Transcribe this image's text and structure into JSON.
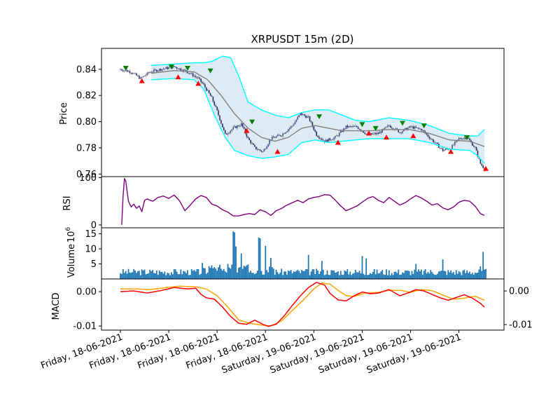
{
  "chart_data": {
    "type": "line",
    "title": "XRPUSDT 15m (2D)",
    "x_tick_labels": [
      "Friday, 18-06-2021",
      "Friday, 18-06-2021",
      "Friday, 18-06-2021",
      "Friday, 18-06-2021",
      "Saturday, 19-06-2021",
      "Saturday, 19-06-2021",
      "Saturday, 19-06-2021",
      "Saturday, 19-06-2021"
    ],
    "panels": {
      "price": {
        "ylabel": "Price",
        "ylim": [
          0.758,
          0.856
        ],
        "yticks": [
          "0.84",
          "0.82",
          "0.80",
          "0.78",
          "0.76"
        ],
        "close_anchors": [
          [
            0,
            0.84
          ],
          [
            8,
            0.838
          ],
          [
            15,
            0.833
          ],
          [
            22,
            0.838
          ],
          [
            30,
            0.84
          ],
          [
            40,
            0.842
          ],
          [
            50,
            0.838
          ],
          [
            58,
            0.833
          ],
          [
            62,
            0.828
          ],
          [
            68,
            0.818
          ],
          [
            72,
            0.808
          ],
          [
            78,
            0.79
          ],
          [
            84,
            0.795
          ],
          [
            90,
            0.798
          ],
          [
            95,
            0.787
          ],
          [
            100,
            0.78
          ],
          [
            106,
            0.777
          ],
          [
            112,
            0.787
          ],
          [
            120,
            0.79
          ],
          [
            128,
            0.797
          ],
          [
            134,
            0.806
          ],
          [
            140,
            0.803
          ],
          [
            146,
            0.79
          ],
          [
            152,
            0.785
          ],
          [
            160,
            0.788
          ],
          [
            168,
            0.796
          ],
          [
            176,
            0.796
          ],
          [
            184,
            0.79
          ],
          [
            192,
            0.791
          ],
          [
            200,
            0.797
          ],
          [
            208,
            0.792
          ],
          [
            216,
            0.796
          ],
          [
            224,
            0.794
          ],
          [
            232,
            0.786
          ],
          [
            240,
            0.778
          ],
          [
            246,
            0.78
          ],
          [
            252,
            0.787
          ],
          [
            258,
            0.788
          ],
          [
            264,
            0.78
          ],
          [
            268,
            0.768
          ],
          [
            271,
            0.764
          ]
        ],
        "ma_anchors": [
          [
            23,
            0.837
          ],
          [
            40,
            0.839
          ],
          [
            55,
            0.838
          ],
          [
            65,
            0.832
          ],
          [
            75,
            0.82
          ],
          [
            85,
            0.806
          ],
          [
            95,
            0.795
          ],
          [
            105,
            0.788
          ],
          [
            115,
            0.785
          ],
          [
            125,
            0.788
          ],
          [
            135,
            0.795
          ],
          [
            145,
            0.797
          ],
          [
            155,
            0.795
          ],
          [
            165,
            0.793
          ],
          [
            175,
            0.793
          ],
          [
            185,
            0.793
          ],
          [
            200,
            0.794
          ],
          [
            215,
            0.794
          ],
          [
            230,
            0.791
          ],
          [
            245,
            0.786
          ],
          [
            260,
            0.785
          ],
          [
            271,
            0.781
          ]
        ],
        "upper_anchors": [
          [
            23,
            0.843
          ],
          [
            40,
            0.844
          ],
          [
            55,
            0.845
          ],
          [
            62,
            0.845
          ],
          [
            68,
            0.846
          ],
          [
            76,
            0.85
          ],
          [
            82,
            0.849
          ],
          [
            88,
            0.835
          ],
          [
            95,
            0.815
          ],
          [
            105,
            0.809
          ],
          [
            115,
            0.805
          ],
          [
            125,
            0.803
          ],
          [
            135,
            0.807
          ],
          [
            145,
            0.809
          ],
          [
            155,
            0.809
          ],
          [
            165,
            0.805
          ],
          [
            175,
            0.801
          ],
          [
            185,
            0.8
          ],
          [
            200,
            0.803
          ],
          [
            215,
            0.801
          ],
          [
            230,
            0.797
          ],
          [
            245,
            0.791
          ],
          [
            260,
            0.789
          ],
          [
            266,
            0.789
          ],
          [
            271,
            0.794
          ]
        ],
        "lower_anchors": [
          [
            23,
            0.832
          ],
          [
            40,
            0.833
          ],
          [
            55,
            0.832
          ],
          [
            62,
            0.825
          ],
          [
            70,
            0.805
          ],
          [
            78,
            0.788
          ],
          [
            85,
            0.778
          ],
          [
            95,
            0.774
          ],
          [
            105,
            0.772
          ],
          [
            115,
            0.773
          ],
          [
            125,
            0.775
          ],
          [
            135,
            0.784
          ],
          [
            145,
            0.786
          ],
          [
            155,
            0.784
          ],
          [
            165,
            0.785
          ],
          [
            175,
            0.786
          ],
          [
            185,
            0.787
          ],
          [
            200,
            0.787
          ],
          [
            215,
            0.787
          ],
          [
            230,
            0.784
          ],
          [
            245,
            0.779
          ],
          [
            260,
            0.778
          ],
          [
            266,
            0.774
          ],
          [
            271,
            0.768
          ]
        ],
        "buy_signals": [
          [
            4,
            0.841
          ],
          [
            38,
            0.842
          ],
          [
            50,
            0.841
          ],
          [
            67,
            0.839
          ],
          [
            98,
            0.8
          ],
          [
            148,
            0.804
          ],
          [
            180,
            0.798
          ],
          [
            190,
            0.795
          ],
          [
            210,
            0.799
          ],
          [
            226,
            0.797
          ],
          [
            258,
            0.788
          ]
        ],
        "sell_signals": [
          [
            16,
            0.831
          ],
          [
            43,
            0.834
          ],
          [
            58,
            0.829
          ],
          [
            94,
            0.793
          ],
          [
            117,
            0.777
          ],
          [
            162,
            0.784
          ],
          [
            185,
            0.791
          ],
          [
            198,
            0.788
          ],
          [
            218,
            0.789
          ],
          [
            246,
            0.777
          ],
          [
            272,
            0.764
          ]
        ]
      },
      "rsi": {
        "ylabel": "RSI",
        "ylim": [
          -6,
          102
        ],
        "yticks": [
          "100",
          "0"
        ],
        "anchors": [
          [
            1,
            0
          ],
          [
            2,
            60
          ],
          [
            3,
            98
          ],
          [
            4,
            92
          ],
          [
            6,
            50
          ],
          [
            8,
            38
          ],
          [
            10,
            44
          ],
          [
            12,
            35
          ],
          [
            14,
            40
          ],
          [
            16,
            28
          ],
          [
            18,
            52
          ],
          [
            20,
            55
          ],
          [
            24,
            50
          ],
          [
            28,
            58
          ],
          [
            32,
            61
          ],
          [
            36,
            56
          ],
          [
            40,
            63
          ],
          [
            44,
            51
          ],
          [
            48,
            30
          ],
          [
            52,
            42
          ],
          [
            56,
            55
          ],
          [
            60,
            62
          ],
          [
            64,
            58
          ],
          [
            68,
            44
          ],
          [
            72,
            40
          ],
          [
            76,
            32
          ],
          [
            80,
            27
          ],
          [
            84,
            19
          ],
          [
            88,
            19
          ],
          [
            92,
            22
          ],
          [
            96,
            24
          ],
          [
            100,
            22
          ],
          [
            104,
            32
          ],
          [
            108,
            28
          ],
          [
            112,
            20
          ],
          [
            116,
            30
          ],
          [
            120,
            35
          ],
          [
            124,
            42
          ],
          [
            128,
            47
          ],
          [
            132,
            52
          ],
          [
            136,
            47
          ],
          [
            140,
            55
          ],
          [
            144,
            58
          ],
          [
            148,
            60
          ],
          [
            152,
            64
          ],
          [
            156,
            63
          ],
          [
            160,
            52
          ],
          [
            164,
            40
          ],
          [
            168,
            30
          ],
          [
            172,
            35
          ],
          [
            176,
            40
          ],
          [
            180,
            48
          ],
          [
            184,
            56
          ],
          [
            188,
            60
          ],
          [
            192,
            52
          ],
          [
            196,
            47
          ],
          [
            200,
            58
          ],
          [
            204,
            50
          ],
          [
            208,
            42
          ],
          [
            212,
            47
          ],
          [
            216,
            55
          ],
          [
            220,
            62
          ],
          [
            224,
            57
          ],
          [
            228,
            50
          ],
          [
            232,
            42
          ],
          [
            236,
            45
          ],
          [
            240,
            36
          ],
          [
            244,
            32
          ],
          [
            248,
            38
          ],
          [
            252,
            48
          ],
          [
            256,
            52
          ],
          [
            260,
            50
          ],
          [
            264,
            40
          ],
          [
            268,
            24
          ],
          [
            271,
            20
          ]
        ]
      },
      "volume": {
        "ylabel": "Volume",
        "exponent_label": "10",
        "exponent": "6",
        "ylim": [
          0,
          17
        ],
        "yticks": [
          "15",
          "10",
          "5"
        ],
        "spikes": [
          [
            84,
            15.8
          ],
          [
            85,
            15.5
          ],
          [
            86,
            10.8
          ],
          [
            90,
            8.5
          ],
          [
            103,
            13.8
          ],
          [
            104,
            13.5
          ],
          [
            108,
            11
          ],
          [
            112,
            7
          ],
          [
            140,
            8
          ],
          [
            150,
            6
          ],
          [
            180,
            7.6
          ],
          [
            183,
            6.8
          ],
          [
            220,
            5
          ],
          [
            240,
            6.5
          ],
          [
            268,
            4.2
          ],
          [
            270,
            9
          ]
        ],
        "base": 1.8
      },
      "macd": {
        "ylabel": "MACD",
        "ylim": [
          -0.0112,
          0.0037
        ],
        "yticks_left": [
          "0.00",
          "-0.01"
        ],
        "yticks_right": [
          "0.00",
          "-0.01"
        ],
        "macd_anchors": [
          [
            0,
            0
          ],
          [
            10,
            0.0002
          ],
          [
            20,
            -0.0004
          ],
          [
            30,
            0.0003
          ],
          [
            40,
            0.0012
          ],
          [
            50,
            0.0008
          ],
          [
            56,
            0.001
          ],
          [
            60,
            -0.0008
          ],
          [
            64,
            -0.0018
          ],
          [
            70,
            -0.0022
          ],
          [
            76,
            -0.0045
          ],
          [
            82,
            -0.0072
          ],
          [
            88,
            -0.0092
          ],
          [
            94,
            -0.0095
          ],
          [
            100,
            -0.0083
          ],
          [
            106,
            -0.0095
          ],
          [
            110,
            -0.0101
          ],
          [
            116,
            -0.0095
          ],
          [
            122,
            -0.007
          ],
          [
            128,
            -0.004
          ],
          [
            134,
            -0.0012
          ],
          [
            140,
            0.0012
          ],
          [
            146,
            0.0027
          ],
          [
            152,
            0.0019
          ],
          [
            156,
            -0.0005
          ],
          [
            162,
            -0.0024
          ],
          [
            168,
            -0.0027
          ],
          [
            174,
            -0.0012
          ],
          [
            180,
            -0.0001
          ],
          [
            186,
            -0.0006
          ],
          [
            192,
            -0.0004
          ],
          [
            200,
            0.0006
          ],
          [
            208,
            -0.0012
          ],
          [
            214,
            -0.0004
          ],
          [
            220,
            0.0006
          ],
          [
            226,
            0.0002
          ],
          [
            232,
            -0.0008
          ],
          [
            238,
            -0.0018
          ],
          [
            244,
            -0.0025
          ],
          [
            250,
            -0.0017
          ],
          [
            256,
            -0.0009
          ],
          [
            262,
            -0.0019
          ],
          [
            268,
            -0.0034
          ],
          [
            271,
            -0.0045
          ]
        ],
        "signal_anchors": [
          [
            0,
            0.0008
          ],
          [
            12,
            0.0008
          ],
          [
            22,
            0.0006
          ],
          [
            34,
            0.0012
          ],
          [
            44,
            0.0016
          ],
          [
            56,
            0.0014
          ],
          [
            64,
            0.0008
          ],
          [
            72,
            -0.0012
          ],
          [
            80,
            -0.0045
          ],
          [
            88,
            -0.0082
          ],
          [
            96,
            -0.0092
          ],
          [
            106,
            -0.0098
          ],
          [
            112,
            -0.01
          ],
          [
            120,
            -0.0085
          ],
          [
            128,
            -0.0055
          ],
          [
            136,
            -0.0025
          ],
          [
            144,
            0.0008
          ],
          [
            150,
            0.0025
          ],
          [
            156,
            0.0022
          ],
          [
            162,
            0.0004
          ],
          [
            168,
            -0.0012
          ],
          [
            174,
            -0.0014
          ],
          [
            182,
            -0.0004
          ],
          [
            192,
            -0.0002
          ],
          [
            200,
            0.0004
          ],
          [
            208,
            0.0004
          ],
          [
            216,
            -0.0002
          ],
          [
            224,
            0.0006
          ],
          [
            232,
            0.0003
          ],
          [
            240,
            -0.001
          ],
          [
            248,
            -0.0022
          ],
          [
            256,
            -0.0019
          ],
          [
            264,
            -0.0013
          ],
          [
            271,
            -0.0025
          ]
        ]
      }
    }
  }
}
